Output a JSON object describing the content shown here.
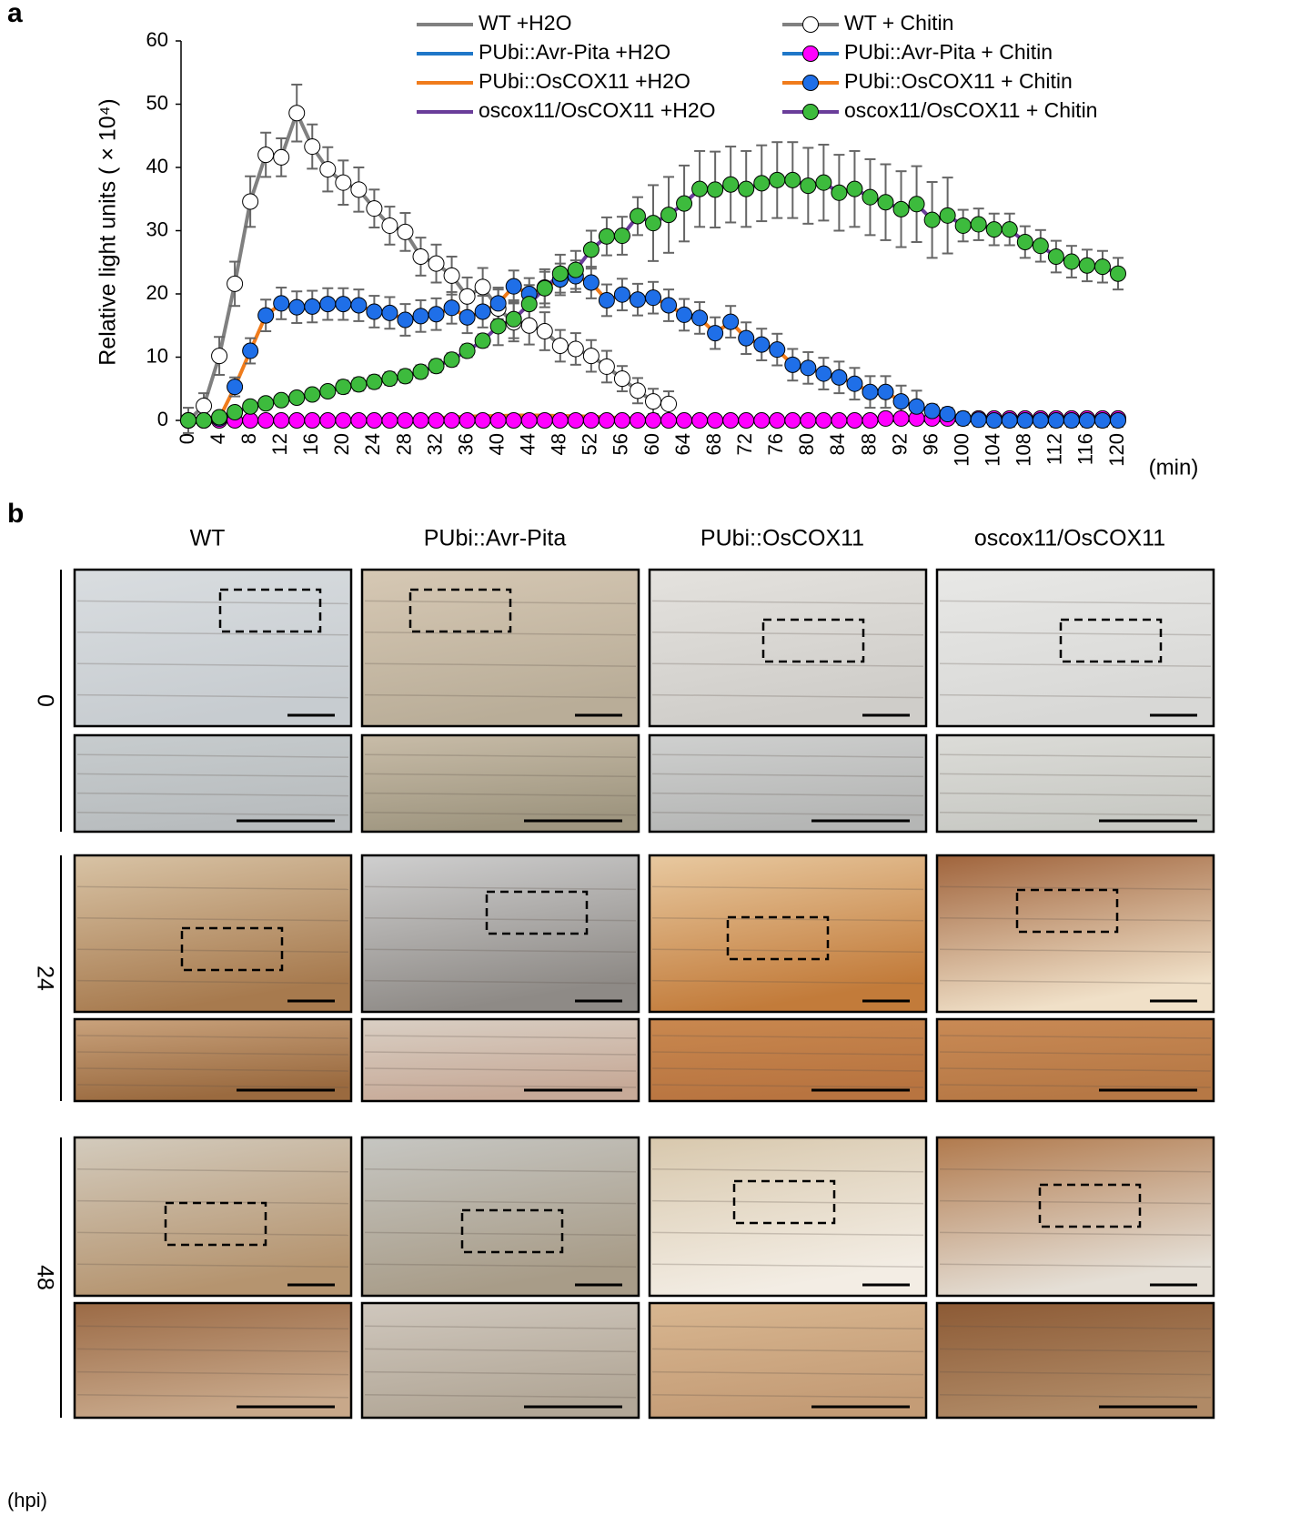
{
  "chart_data": {
    "type": "line",
    "panel_label": "a",
    "ylabel": "Relative light units ( × 10⁴)",
    "xlabel": "(min)",
    "xlim": [
      0,
      120
    ],
    "ylim": [
      0,
      60
    ],
    "xticks": [
      0,
      4,
      8,
      12,
      16,
      20,
      24,
      28,
      32,
      36,
      40,
      44,
      48,
      52,
      56,
      60,
      64,
      68,
      72,
      76,
      80,
      84,
      88,
      92,
      96,
      100,
      104,
      108,
      112,
      116,
      120
    ],
    "yticks": [
      0,
      10,
      20,
      30,
      40,
      50,
      60
    ],
    "x": [
      0,
      2,
      4,
      6,
      8,
      10,
      12,
      14,
      16,
      18,
      20,
      22,
      24,
      26,
      28,
      30,
      32,
      34,
      36,
      38,
      40,
      42,
      44,
      46,
      48,
      50,
      52,
      54,
      56,
      58,
      60,
      62,
      64,
      66,
      68,
      70,
      72,
      74,
      76,
      78,
      80,
      82,
      84,
      86,
      88,
      90,
      92,
      94,
      96,
      98,
      100,
      102,
      104,
      106,
      108,
      110,
      112,
      114,
      116,
      118,
      120
    ],
    "series": [
      {
        "name": "WT +H2O",
        "color": "#808080",
        "values": [
          0,
          0,
          0,
          0,
          0,
          0,
          0,
          0,
          0,
          0,
          0,
          0,
          0,
          0,
          0,
          0,
          0,
          0,
          0,
          0,
          0,
          0,
          0,
          0,
          0,
          0,
          0,
          0,
          0,
          0,
          0,
          0,
          0,
          0,
          0,
          0,
          0,
          0,
          0,
          0,
          0,
          0,
          0,
          0,
          0,
          0,
          0,
          0,
          0,
          0,
          0,
          0,
          0,
          0,
          0,
          0,
          0,
          0,
          0,
          0,
          0
        ]
      },
      {
        "name": "WT + Chitin",
        "color": "#808080",
        "marker_color": "#ffffff",
        "values": [
          0,
          2.3,
          10.2,
          21.6,
          34.6,
          42,
          41.6,
          48.6,
          43.3,
          39.7,
          37.6,
          36.5,
          33.5,
          30.8,
          29.8,
          25.9,
          24.8,
          22.9,
          19.6,
          21.1,
          17.7,
          15.5,
          15,
          14.1,
          11.8,
          11.3,
          10.2,
          8.5,
          6.6,
          4.7,
          3,
          2.6,
          null,
          null,
          null,
          null,
          null,
          null,
          null,
          null,
          null,
          null,
          null,
          null,
          null,
          null,
          null,
          null,
          null,
          null,
          null,
          null,
          null,
          null,
          null,
          null,
          null,
          null,
          null,
          null,
          null
        ],
        "errors": [
          2,
          2,
          3,
          3.5,
          4,
          3.5,
          3,
          4.5,
          3.5,
          3.5,
          3.5,
          3.5,
          3,
          3,
          3,
          3,
          3,
          3,
          3,
          3,
          3,
          3,
          3,
          3,
          2.5,
          2.5,
          2.5,
          2.5,
          2,
          2,
          2,
          2,
          null,
          null,
          null,
          null,
          null,
          null,
          null,
          null,
          null,
          null,
          null,
          null,
          null,
          null,
          null,
          null,
          null,
          null,
          null,
          null,
          null,
          null,
          null,
          null,
          null,
          null,
          null,
          null,
          null
        ]
      },
      {
        "name": "PUbi::Avr-Pita +H2O",
        "color": "#1f77c8",
        "values": [
          0,
          0,
          0,
          0,
          0,
          0,
          0,
          0,
          0,
          0,
          0,
          0,
          0,
          0,
          0,
          0,
          0,
          0,
          0,
          0,
          0,
          0,
          0,
          0,
          0,
          0,
          0,
          0,
          0,
          0,
          0,
          0,
          0,
          0,
          0,
          0,
          0,
          0,
          0,
          0,
          0,
          0,
          0,
          0,
          0,
          0,
          0,
          0,
          0,
          0,
          0,
          0,
          0,
          0,
          0,
          0,
          0,
          0,
          0,
          0,
          0
        ]
      },
      {
        "name": "PUbi::Avr-Pita + Chitin",
        "color": "#1f77c8",
        "marker_color": "#ff00ff",
        "values": [
          0,
          0,
          0,
          0,
          0,
          0,
          0,
          0,
          0,
          0,
          0,
          0,
          0,
          0,
          0,
          0,
          0,
          0,
          0,
          0,
          0,
          0,
          0,
          0,
          0,
          0,
          0,
          0,
          0,
          0,
          0,
          0,
          0,
          0,
          0,
          0,
          0,
          0,
          0,
          0,
          0,
          0,
          0,
          0,
          0,
          0.3,
          0.3,
          0.3,
          0.3,
          0.3,
          0.3,
          0.3,
          0.3,
          0.3,
          0.3,
          0.3,
          0.3,
          0.3,
          0.3,
          0.3,
          0.3
        ]
      },
      {
        "name": "PUbi::OsCOX11 +H2O",
        "color": "#f07c1c",
        "values": [
          0,
          0,
          0,
          0,
          0,
          0,
          0,
          0,
          0,
          0,
          0,
          0,
          0,
          0,
          0,
          0.3,
          0.4,
          0.5,
          0.6,
          0.7,
          0.7,
          0.8,
          0.8,
          0.8,
          0.7,
          0.7,
          0.6,
          0.5,
          0.4,
          0.3,
          0.2,
          0,
          0,
          0,
          0,
          0,
          0,
          0,
          0,
          0,
          0,
          0,
          0,
          0,
          0,
          0,
          0,
          0,
          0,
          0,
          0,
          0,
          0,
          0,
          0,
          0,
          0,
          0,
          0,
          0,
          0
        ]
      },
      {
        "name": "PUbi::OsCOX11 + Chitin",
        "color": "#f07c1c",
        "marker_color": "#1f6fe8",
        "values": [
          0,
          0,
          0.3,
          5.3,
          11,
          16.6,
          18.5,
          17.9,
          18,
          18.4,
          18.4,
          18.2,
          17.2,
          17,
          15.9,
          16.5,
          16.8,
          17.8,
          16.3,
          17.2,
          18.5,
          21.2,
          20,
          21,
          22.3,
          22.8,
          21.8,
          19,
          19.9,
          19.1,
          19.4,
          18.2,
          16.7,
          16.2,
          13.8,
          15.6,
          13,
          12,
          11.2,
          8.8,
          8.3,
          7.4,
          6.8,
          5.8,
          4.5,
          4.5,
          3,
          2.2,
          1.5,
          1,
          0.3,
          0.1,
          0,
          0,
          0,
          0,
          0,
          0,
          0,
          0,
          0
        ],
        "errors": [
          0.5,
          0.5,
          0.5,
          1.5,
          2,
          2.5,
          2.5,
          2.5,
          2.5,
          2.5,
          2.5,
          2.5,
          2.5,
          2.5,
          2.5,
          2.5,
          2.5,
          2.5,
          2.5,
          2.5,
          2.5,
          2.5,
          2.5,
          2.5,
          2.5,
          2.5,
          2.5,
          2.5,
          2.5,
          2.5,
          2.5,
          2.5,
          2.5,
          2.5,
          2.5,
          2.5,
          2.5,
          2.5,
          2.5,
          2.5,
          2.5,
          2.5,
          2.5,
          2.5,
          2.5,
          2.5,
          2.5,
          2.5,
          1,
          1,
          1,
          1,
          1,
          1,
          1,
          1,
          1,
          1,
          1,
          1,
          1
        ]
      },
      {
        "name": "oscox11/OsCOX11 +H2O",
        "color": "#6a3d9a",
        "values": [
          0,
          0,
          0,
          0,
          0,
          0,
          0,
          0,
          0,
          0,
          0,
          0,
          0,
          0,
          0,
          0,
          0,
          0,
          0,
          0,
          0,
          0,
          0,
          0,
          0,
          0,
          0,
          0,
          0,
          0,
          0,
          0,
          0,
          0,
          0,
          0,
          0,
          0,
          0,
          0,
          0,
          0,
          0,
          0,
          0,
          0,
          0,
          0,
          0,
          0,
          0,
          0,
          0,
          0,
          0,
          0,
          0,
          0,
          0,
          0,
          0
        ]
      },
      {
        "name": "oscox11/OsCOX11 + Chitin",
        "color": "#6a3d9a",
        "marker_color": "#3dbb3d",
        "values": [
          0,
          0,
          0.5,
          1.3,
          2.2,
          2.7,
          3.2,
          3.6,
          4.1,
          4.6,
          5.3,
          5.7,
          6.1,
          6.6,
          7,
          7.7,
          8.6,
          9.6,
          11,
          12.6,
          14.9,
          16,
          18.4,
          20.9,
          23.2,
          23.8,
          27,
          29.1,
          29.2,
          32.3,
          31.2,
          32.5,
          34.3,
          36.6,
          36.5,
          37.3,
          36.6,
          37.5,
          38,
          38,
          37.1,
          37.6,
          36,
          36.6,
          35.3,
          34.5,
          33.4,
          34.2,
          31.7,
          32.4,
          30.8,
          31,
          30.2,
          30.2,
          28.2,
          27.6,
          25.9,
          25.1,
          24.5,
          24.3,
          23.2
        ],
        "errors": [
          0.5,
          0.5,
          0.5,
          0.5,
          0.5,
          0.5,
          0.5,
          0.5,
          0.5,
          0.5,
          1,
          1,
          1,
          1,
          1,
          1,
          1,
          1,
          1,
          1,
          3,
          3,
          3,
          3,
          3,
          3,
          3,
          3,
          3,
          3,
          6,
          6,
          6,
          6,
          6,
          6,
          6,
          6,
          6,
          6,
          6,
          6,
          6,
          6,
          6,
          6,
          6,
          6,
          6,
          6,
          2.5,
          2.5,
          2.5,
          2.5,
          2.5,
          2.5,
          2.5,
          2.5,
          2.5,
          2.5,
          2.5
        ]
      }
    ]
  },
  "panel_b": {
    "label": "b",
    "columns": [
      "WT",
      "PUbi::Avr-Pita",
      "PUbi::OsCOX11",
      "oscox11/OsCOX11"
    ],
    "rows": [
      "0",
      "24",
      "48"
    ],
    "unit": "(hpi)"
  }
}
